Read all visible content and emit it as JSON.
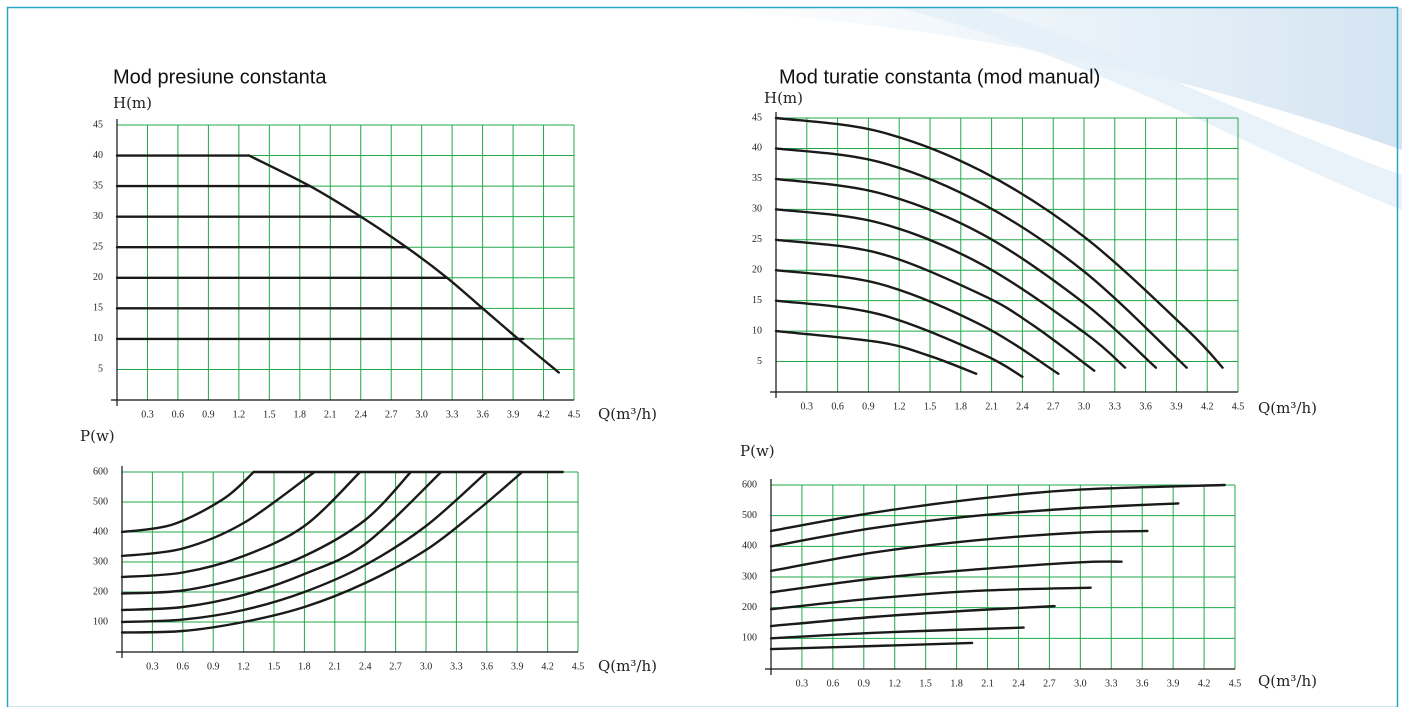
{
  "chart_data": [
    {
      "type": "line",
      "title": "Mod presiune constanta",
      "y_label": "H(m)",
      "x_label": "Q(m³/h)",
      "color": "#1a1a1a",
      "grid": true,
      "grid_color": "#22a84a",
      "xlim": [
        0,
        4.5
      ],
      "ylim": [
        0,
        45
      ],
      "xticks": [
        0.3,
        0.6,
        0.9,
        1.2,
        1.5,
        1.8,
        2.1,
        2.4,
        2.7,
        {
          "value": 3,
          "label": "3.0"
        },
        3.3,
        3.6,
        3.9,
        4.2,
        4.5
      ],
      "yticks": [
        5,
        10,
        15,
        20,
        25,
        30,
        35,
        40,
        45
      ],
      "series": [
        {
          "x": [
            0,
            1.3
          ],
          "values": [
            40,
            40
          ]
        },
        {
          "x": [
            0,
            1.9
          ],
          "values": [
            35,
            35
          ]
        },
        {
          "x": [
            0,
            2.4
          ],
          "values": [
            30,
            30
          ]
        },
        {
          "x": [
            0,
            2.85
          ],
          "values": [
            25,
            25
          ]
        },
        {
          "x": [
            0,
            3.25
          ],
          "values": [
            20,
            20
          ]
        },
        {
          "x": [
            0,
            3.6
          ],
          "values": [
            15,
            15
          ]
        },
        {
          "x": [
            0,
            4.0
          ],
          "values": [
            10,
            10
          ]
        },
        {
          "x": [
            1.3,
            1.9,
            2.4,
            2.85,
            3.25,
            3.6,
            3.95,
            4.35
          ],
          "values": [
            40,
            35,
            30,
            25,
            20,
            15,
            10,
            4.5
          ]
        }
      ]
    },
    {
      "type": "line",
      "y_label": "P(w)",
      "x_label": "Q(m³/h)",
      "color": "#1a1a1a",
      "grid": true,
      "grid_color": "#22a84a",
      "xlim": [
        0,
        4.5
      ],
      "ylim": [
        0,
        600
      ],
      "xticks": [
        0.3,
        0.6,
        0.9,
        1.2,
        1.5,
        1.8,
        2.1,
        2.4,
        2.7,
        {
          "value": 3,
          "label": "3.0"
        },
        3.3,
        3.6,
        3.9,
        4.2,
        4.5
      ],
      "yticks": [
        100,
        200,
        300,
        400,
        500,
        600
      ],
      "series": [
        {
          "x": [
            0,
            0.5,
            1,
            1.3
          ],
          "values": [
            400,
            425,
            510,
            600
          ]
        },
        {
          "x": [
            0,
            0.6,
            1.2,
            1.9
          ],
          "values": [
            320,
            345,
            430,
            600
          ]
        },
        {
          "x": [
            0,
            0.6,
            1.2,
            1.8,
            2.35
          ],
          "values": [
            250,
            265,
            320,
            420,
            600
          ]
        },
        {
          "x": [
            0,
            0.6,
            1.2,
            1.8,
            2.4,
            2.85
          ],
          "values": [
            195,
            205,
            250,
            320,
            440,
            600
          ]
        },
        {
          "x": [
            0,
            0.6,
            1.2,
            1.8,
            2.4,
            3.15
          ],
          "values": [
            140,
            150,
            190,
            260,
            360,
            600
          ]
        },
        {
          "x": [
            0,
            0.6,
            1.2,
            1.8,
            2.4,
            3,
            3.6
          ],
          "values": [
            100,
            108,
            140,
            200,
            290,
            420,
            600
          ]
        },
        {
          "x": [
            0,
            0.6,
            1.2,
            1.8,
            2.4,
            3,
            3.5,
            3.95
          ],
          "values": [
            65,
            70,
            100,
            150,
            230,
            340,
            470,
            600
          ]
        },
        {
          "x": [
            1.3,
            4.35
          ],
          "values": [
            600,
            600
          ]
        }
      ]
    },
    {
      "type": "line",
      "title": "Mod turatie constanta (mod manual)",
      "y_label": "H(m)",
      "x_label": "Q(m³/h)",
      "color": "#1a1a1a",
      "grid": true,
      "grid_color": "#22a84a",
      "xlim": [
        0,
        4.5
      ],
      "ylim": [
        0,
        45
      ],
      "xticks": [
        0.3,
        0.6,
        0.9,
        1.2,
        1.5,
        1.8,
        2.1,
        2.4,
        2.7,
        {
          "value": 3,
          "label": "3.0"
        },
        3.3,
        3.6,
        3.9,
        4.2,
        4.5
      ],
      "yticks": [
        5,
        10,
        15,
        20,
        25,
        30,
        35,
        40,
        45
      ],
      "series": [
        {
          "x": [
            0,
            1,
            2,
            3,
            4,
            4.35
          ],
          "values": [
            45,
            42.8,
            36.3,
            25.5,
            10.3,
            4
          ]
        },
        {
          "x": [
            0,
            1,
            2,
            3,
            4
          ],
          "values": [
            40,
            37.8,
            31,
            19.8,
            4
          ]
        },
        {
          "x": [
            0,
            1,
            2,
            3,
            3.7
          ],
          "values": [
            35,
            32.7,
            26,
            14.6,
            4
          ]
        },
        {
          "x": [
            0,
            1,
            2,
            3,
            3.4
          ],
          "values": [
            30,
            27.8,
            21,
            9.8,
            4
          ]
        },
        {
          "x": [
            0,
            1,
            2,
            2.5,
            3.1
          ],
          "values": [
            25,
            22.8,
            16,
            11,
            3.5
          ]
        },
        {
          "x": [
            0,
            1,
            2,
            2.75
          ],
          "values": [
            20,
            17.8,
            11,
            3
          ]
        },
        {
          "x": [
            0,
            1,
            2,
            2.4
          ],
          "values": [
            15,
            12.8,
            6.3,
            2.5
          ]
        },
        {
          "x": [
            0,
            1,
            1.5,
            1.95
          ],
          "values": [
            10,
            8.2,
            5.9,
            3
          ]
        }
      ]
    },
    {
      "type": "line",
      "y_label": "P(w)",
      "x_label": "Q(m³/h)",
      "color": "#1a1a1a",
      "grid": true,
      "grid_color": "#22a84a",
      "xlim": [
        0,
        4.5
      ],
      "ylim": [
        0,
        600
      ],
      "xticks": [
        0.3,
        0.6,
        0.9,
        1.2,
        1.5,
        1.8,
        2.1,
        2.4,
        2.7,
        {
          "value": 3,
          "label": "3.0"
        },
        3.3,
        3.6,
        3.9,
        4.2,
        4.5
      ],
      "yticks": [
        100,
        200,
        300,
        400,
        500,
        600
      ],
      "series": [
        {
          "x": [
            0,
            1,
            2,
            3,
            4.4
          ],
          "values": [
            450,
            510,
            555,
            585,
            600
          ]
        },
        {
          "x": [
            0,
            1,
            2,
            3,
            3.95
          ],
          "values": [
            400,
            460,
            500,
            525,
            540
          ]
        },
        {
          "x": [
            0,
            1,
            2,
            3,
            3.65
          ],
          "values": [
            320,
            380,
            420,
            445,
            450
          ]
        },
        {
          "x": [
            0,
            1,
            2,
            3,
            3.4
          ],
          "values": [
            250,
            295,
            325,
            348,
            350
          ]
        },
        {
          "x": [
            0,
            1,
            2,
            3.1
          ],
          "values": [
            195,
            230,
            255,
            265
          ]
        },
        {
          "x": [
            0,
            1,
            2,
            2.75
          ],
          "values": [
            140,
            170,
            192,
            205
          ]
        },
        {
          "x": [
            0,
            1,
            2,
            2.45
          ],
          "values": [
            100,
            118,
            130,
            135
          ]
        },
        {
          "x": [
            0,
            1,
            1.95
          ],
          "values": [
            65,
            75,
            85
          ]
        }
      ]
    }
  ]
}
